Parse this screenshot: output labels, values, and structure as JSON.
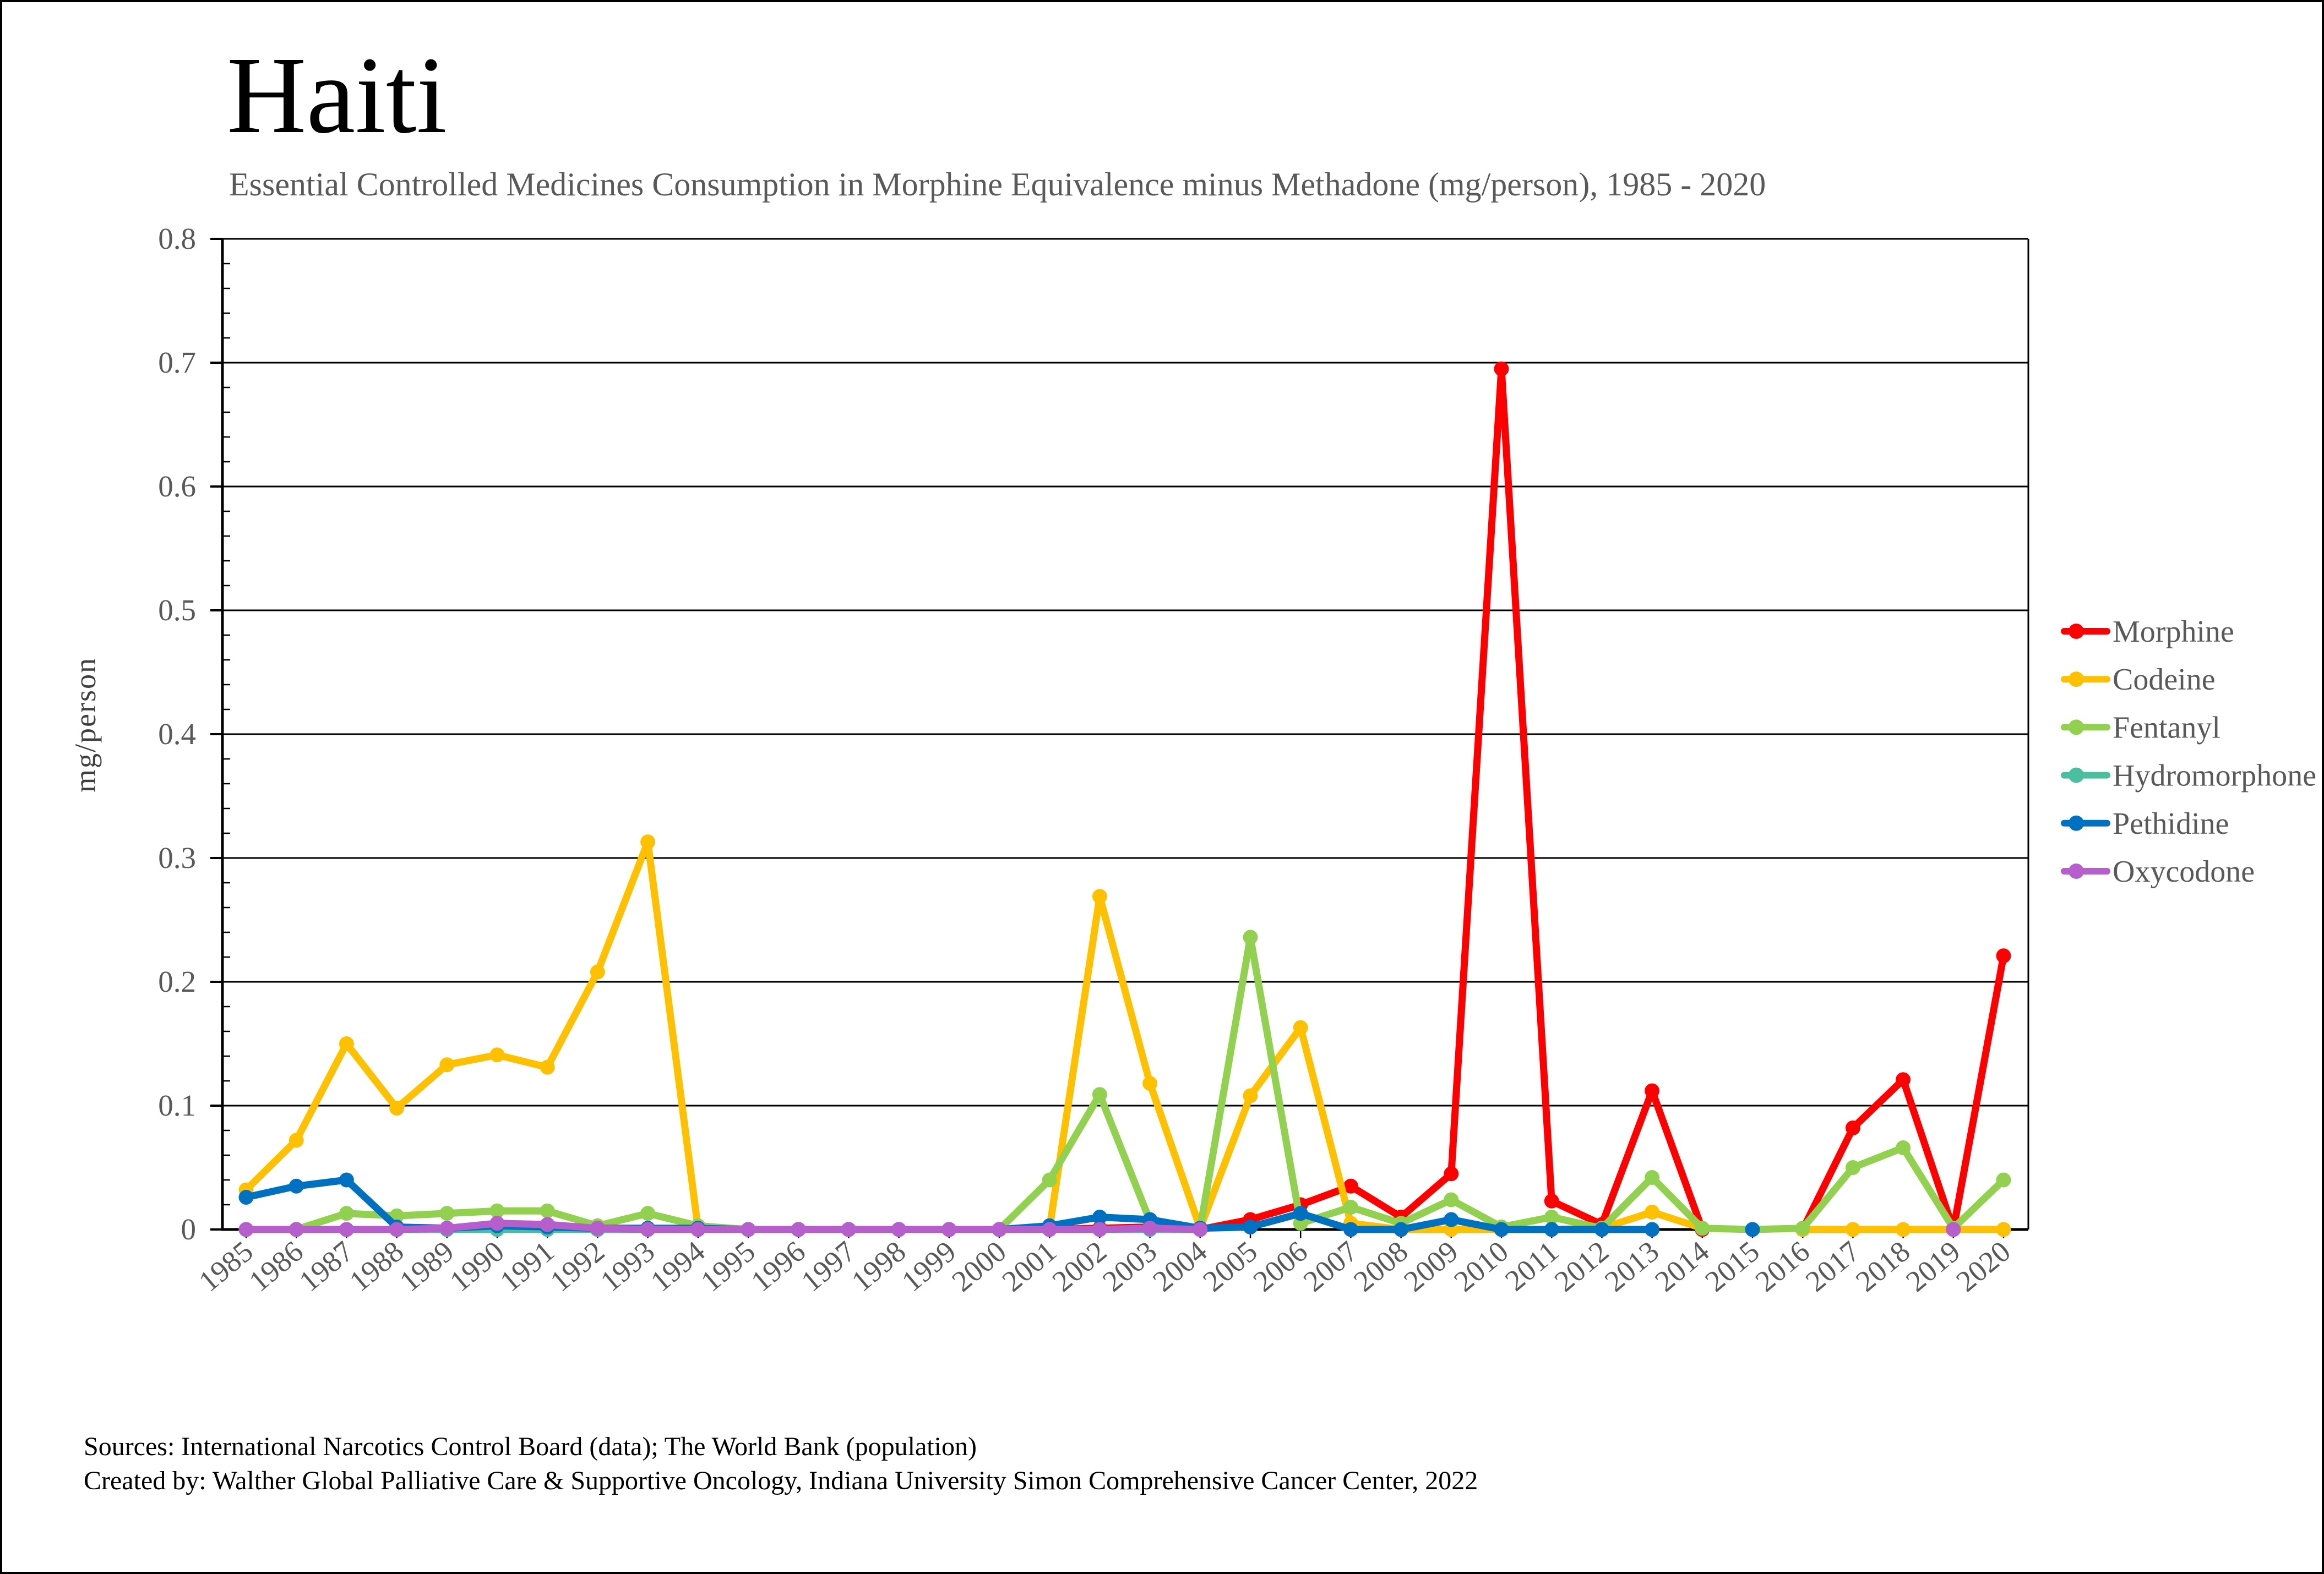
{
  "header": {
    "title": "Haiti",
    "subtitle": "Essential Controlled Medicines Consumption in Morphine Equivalence minus Methadone (mg/person), 1985 - 2020"
  },
  "y_axis": {
    "label": "mg/person",
    "min": 0,
    "max": 0.8,
    "major_step": 0.1,
    "minor_step": 0.02,
    "tick_labels": [
      "0",
      "0.1",
      "0.2",
      "0.3",
      "0.4",
      "0.5",
      "0.6",
      "0.7",
      "0.8"
    ]
  },
  "x_axis": {
    "tick_labels": [
      "1985",
      "1986",
      "1987",
      "1988",
      "1989",
      "1990",
      "1991",
      "1992",
      "1993",
      "1994",
      "1995",
      "1996",
      "1997",
      "1998",
      "1999",
      "2000",
      "2001",
      "2002",
      "2003",
      "2004",
      "2005",
      "2006",
      "2007",
      "2008",
      "2009",
      "2010",
      "2011",
      "2012",
      "2013",
      "2014",
      "2015",
      "2016",
      "2017",
      "2018",
      "2019",
      "2020"
    ]
  },
  "legend": {
    "position": "right"
  },
  "footer": {
    "line1": "Sources: International Narcotics Control Board (data); The World Bank (population)",
    "line2": "Created by: Walther Global Palliative Care & Supportive Oncology, Indiana University Simon Comprehensive Cancer Center, 2022"
  },
  "chart_data": {
    "type": "line",
    "title": "Haiti",
    "subtitle": "Essential Controlled Medicines Consumption in Morphine Equivalence minus Methadone (mg/person), 1985 - 2020",
    "xlabel": "",
    "ylabel": "mg/person",
    "ylim": [
      0,
      0.8
    ],
    "grid": "horizontal-major",
    "legend_position": "right",
    "x": [
      1985,
      1986,
      1987,
      1988,
      1989,
      1990,
      1991,
      1992,
      1993,
      1994,
      1995,
      1996,
      1997,
      1998,
      1999,
      2000,
      2001,
      2002,
      2003,
      2004,
      2005,
      2006,
      2007,
      2008,
      2009,
      2010,
      2011,
      2012,
      2013,
      2014,
      2015,
      2016,
      2017,
      2018,
      2019,
      2020
    ],
    "series": [
      {
        "name": "Morphine",
        "color": "#FE0000",
        "values": [
          0,
          0,
          0,
          0,
          0,
          0.002,
          0.002,
          0,
          0,
          0,
          0,
          0,
          0,
          0,
          0,
          0,
          0,
          0.001,
          0.002,
          0,
          0.008,
          0.02,
          0.035,
          0.01,
          0.045,
          0.695,
          0.023,
          0.004,
          0.112,
          0,
          null,
          0,
          0.082,
          0.121,
          0,
          0.221
        ]
      },
      {
        "name": "Codeine",
        "color": "#FFC000",
        "values": [
          0.032,
          0.072,
          0.15,
          0.098,
          0.133,
          0.141,
          0.131,
          0.208,
          0.313,
          0.001,
          0,
          0,
          0,
          0,
          0,
          0,
          0.001,
          0.269,
          0.118,
          0.001,
          0.108,
          0.163,
          0.005,
          0,
          0,
          0,
          0,
          0.001,
          0.014,
          0.001,
          null,
          0,
          0,
          0,
          0,
          0
        ]
      },
      {
        "name": "Fentanyl",
        "color": "#92D050",
        "values": [
          0,
          0,
          0.013,
          0.011,
          0.013,
          0.015,
          0.015,
          0.003,
          0.013,
          0.003,
          0,
          0,
          0,
          0,
          0,
          0,
          0.04,
          0.109,
          0.007,
          0.001,
          0.236,
          0.005,
          0.018,
          0.005,
          0.024,
          0.002,
          0.01,
          0.001,
          0.042,
          0.001,
          0,
          0.001,
          0.05,
          0.066,
          0.001,
          0.04
        ]
      },
      {
        "name": "Hydromorphone",
        "color": "#4ABFA0",
        "values": [
          0,
          0,
          0,
          0,
          0,
          0,
          0,
          0,
          0,
          0,
          0,
          0,
          0,
          0,
          0,
          0,
          0,
          0,
          0,
          0,
          null,
          null,
          null,
          null,
          null,
          null,
          null,
          null,
          null,
          null,
          null,
          null,
          null,
          null,
          null,
          null
        ]
      },
      {
        "name": "Pethidine",
        "color": "#0070C0",
        "values": [
          0.026,
          0.035,
          0.04,
          0.002,
          0.001,
          0.003,
          0.002,
          0.001,
          0.001,
          0.001,
          0,
          0,
          0,
          0,
          0,
          0,
          0.003,
          0.01,
          0.008,
          0.001,
          0.002,
          0.013,
          0,
          0,
          0.008,
          0,
          0,
          0,
          0,
          null,
          0,
          null,
          null,
          null,
          null,
          null
        ]
      },
      {
        "name": "Oxycodone",
        "color": "#B55ECC",
        "values": [
          0,
          0,
          0,
          0,
          0.001,
          0.005,
          0.004,
          0.001,
          0,
          0,
          0,
          0,
          0,
          0,
          0,
          0,
          0,
          0,
          0.001,
          0,
          null,
          null,
          null,
          null,
          null,
          null,
          null,
          null,
          null,
          null,
          null,
          null,
          null,
          null,
          0,
          null
        ]
      }
    ]
  }
}
